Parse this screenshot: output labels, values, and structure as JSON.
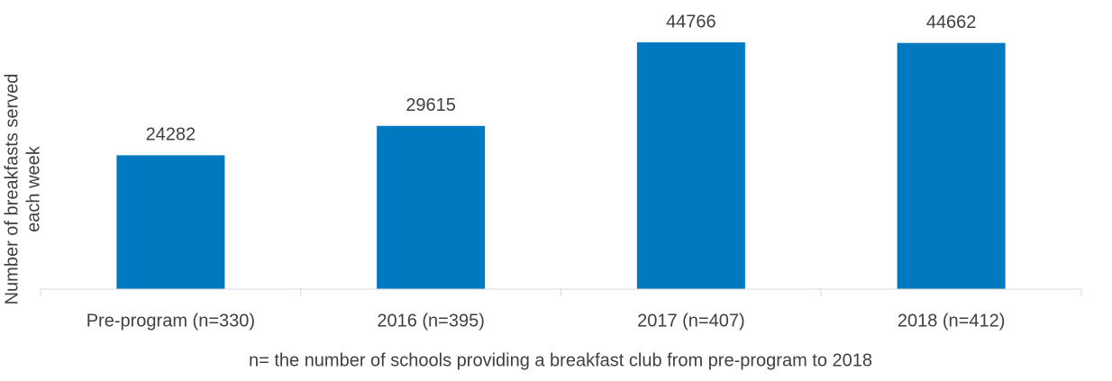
{
  "chart_data": {
    "type": "bar",
    "ylabel": [
      "Number of breakfasts served",
      "each week"
    ],
    "xlabel": "n= the number of schools providing a breakfast club from pre-program to 2018",
    "categories": [
      "Pre-program (n=330)",
      "2016 (n=395)",
      "2017 (n=407)",
      "2018 (n=412)"
    ],
    "values": [
      24282,
      29615,
      44766,
      44662
    ],
    "color": "#0079c1",
    "ylim": [
      0,
      50000
    ]
  }
}
